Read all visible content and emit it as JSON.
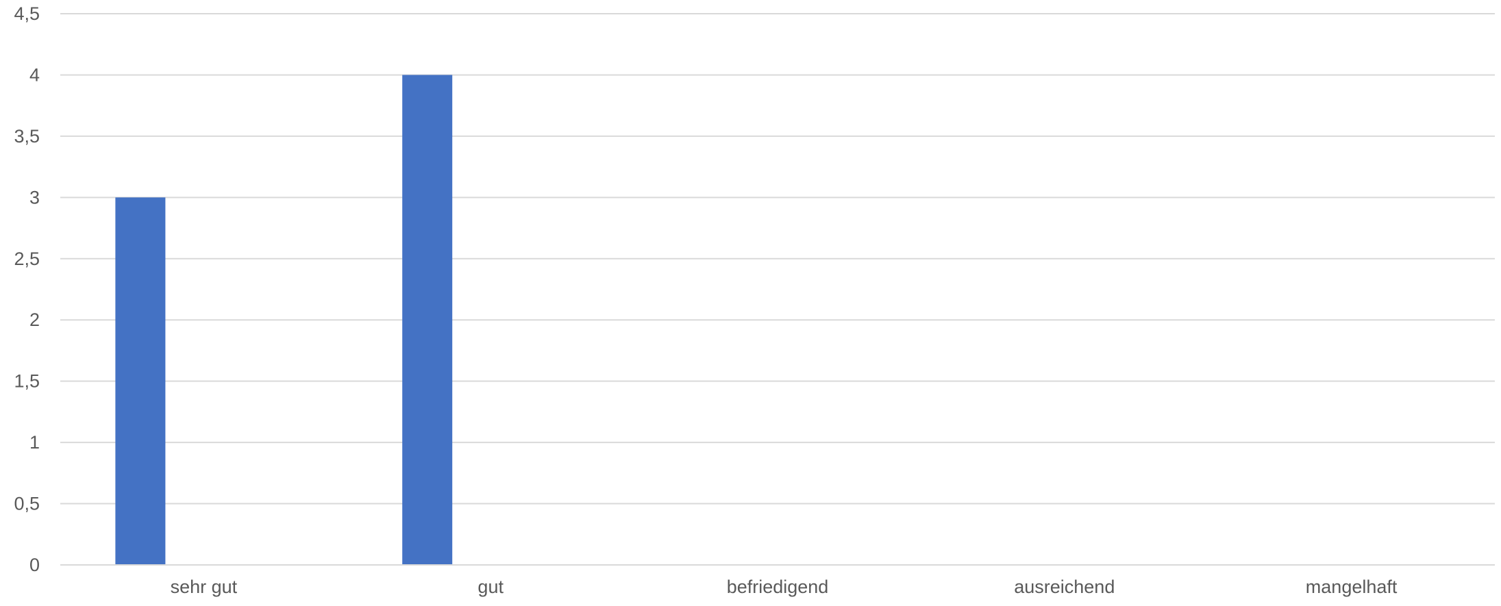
{
  "chart_data": {
    "type": "bar",
    "categories": [
      "sehr gut",
      "gut",
      "befriedigend",
      "ausreichend",
      "mangelhaft"
    ],
    "values": [
      3,
      4,
      0,
      0,
      0
    ],
    "ylim": [
      0,
      4.5
    ],
    "yticks": [
      "0",
      "0,5",
      "1",
      "1,5",
      "2",
      "2,5",
      "3",
      "3,5",
      "4",
      "4,5"
    ],
    "title": "",
    "xlabel": "",
    "ylabel": "",
    "grid": true,
    "legend": "none",
    "bar_color": "#4472c4"
  }
}
